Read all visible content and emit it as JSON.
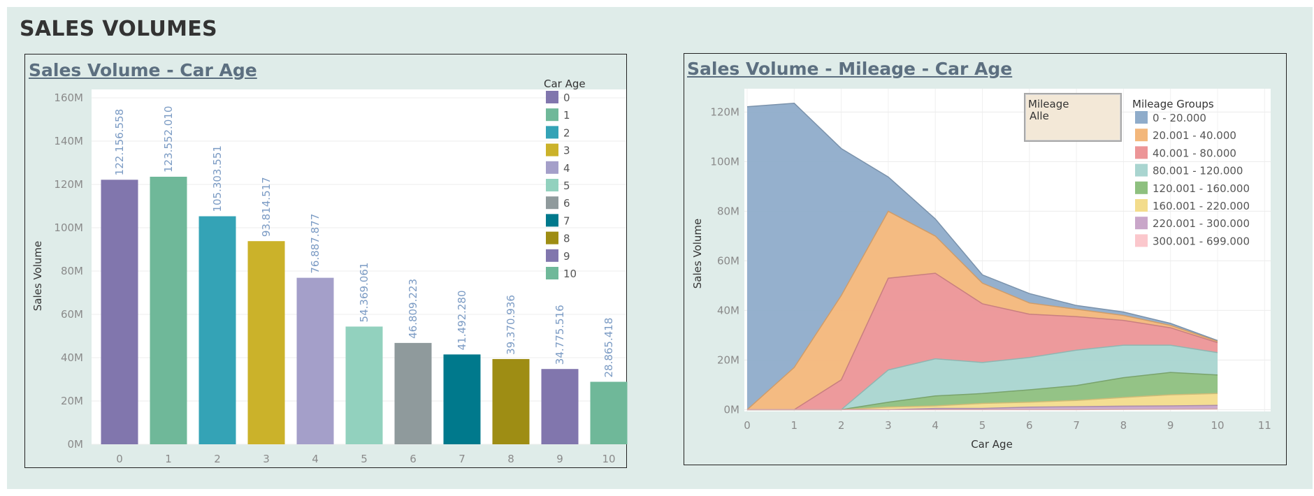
{
  "page": {
    "title": "SALES VOLUMES"
  },
  "filter": {
    "label": "Mileage",
    "value": "Alle"
  },
  "colors": {
    "panel_bg": "#dfece9",
    "plot_bg": "#ffffff",
    "title_color": "#5c6f80",
    "data_label_color": "#7b9bc4"
  },
  "chart_data": [
    {
      "type": "bar",
      "title": "Sales Volume - Car Age",
      "xlabel": "",
      "ylabel": "Sales Volume",
      "ylim": [
        0,
        160000000
      ],
      "yticks": [
        0,
        20000000,
        40000000,
        60000000,
        80000000,
        100000000,
        120000000,
        140000000,
        160000000
      ],
      "ytick_labels": [
        "0M",
        "20M",
        "40M",
        "60M",
        "80M",
        "100M",
        "120M",
        "140M",
        "160M"
      ],
      "categories": [
        "0",
        "1",
        "2",
        "3",
        "4",
        "5",
        "6",
        "7",
        "8",
        "9",
        "10"
      ],
      "values": [
        122156558,
        123552010,
        105303551,
        93814517,
        76887877,
        54369061,
        46809223,
        41492280,
        39370936,
        34775516,
        28865418
      ],
      "data_labels": [
        "122.156.558",
        "123.552.010",
        "105.303.551",
        "93.814.517",
        "76.887.877",
        "54.369.061",
        "46.809.223",
        "41.492.280",
        "39.370.936",
        "34.775.516",
        "28.865.418"
      ],
      "colors": [
        "#8176ad",
        "#6fb899",
        "#34a3b6",
        "#cbb22a",
        "#a49fc9",
        "#92d1be",
        "#8f9a9c",
        "#00798c",
        "#9e8d14",
        "#8176ad",
        "#6fb899"
      ],
      "legend": {
        "title": "Car Age",
        "position": "top-right",
        "items": [
          "0",
          "1",
          "2",
          "3",
          "4",
          "5",
          "6",
          "7",
          "8",
          "9",
          "10"
        ]
      },
      "grid": true
    },
    {
      "type": "area",
      "stacked": true,
      "title": "Sales Volume - Mileage - Car Age",
      "xlabel": "Car Age",
      "ylabel": "Sales Volume",
      "xlim": [
        0,
        11
      ],
      "ylim": [
        -3000000,
        128000000
      ],
      "x": [
        0,
        1,
        2,
        3,
        4,
        5,
        6,
        7,
        8,
        9,
        10
      ],
      "xticks": [
        "0",
        "1",
        "2",
        "3",
        "4",
        "5",
        "6",
        "7",
        "8",
        "9",
        "10",
        "11"
      ],
      "yticks": [
        0,
        20000000,
        40000000,
        60000000,
        80000000,
        100000000,
        120000000
      ],
      "ytick_labels": [
        "0M",
        "20M",
        "40M",
        "60M",
        "80M",
        "100M",
        "120M"
      ],
      "series": [
        {
          "name": "300.001 - 699.000",
          "color": "#fbc7cc",
          "values": [
            0,
            0,
            0,
            0,
            0,
            0,
            0,
            0,
            100000,
            200000,
            300000
          ]
        },
        {
          "name": "220.001 - 300.000",
          "color": "#c9a6c9",
          "values": [
            0,
            0,
            0,
            0,
            500000,
            500000,
            1000000,
            1200000,
            1300000,
            1300000,
            1400000
          ]
        },
        {
          "name": "160.001 - 220.000",
          "color": "#f3dc8c",
          "values": [
            0,
            0,
            0,
            1000000,
            1000000,
            2000000,
            2000000,
            2500000,
            3500000,
            4500000,
            4800000
          ]
        },
        {
          "name": "120.001 - 160.000",
          "color": "#8ec07f",
          "values": [
            0,
            0,
            0,
            2000000,
            4000000,
            4000000,
            5000000,
            6000000,
            8000000,
            9000000,
            7500000
          ]
        },
        {
          "name": "80.001 - 120.000",
          "color": "#a9d5d0",
          "values": [
            0,
            0,
            0,
            13000000,
            15000000,
            12500000,
            13000000,
            14300000,
            13100000,
            11000000,
            9000000
          ]
        },
        {
          "name": "40.001 - 80.000",
          "color": "#ec9597",
          "values": [
            0,
            0,
            12000000,
            37000000,
            34500000,
            23700000,
            17500000,
            13500000,
            10000000,
            7000000,
            4000000
          ]
        },
        {
          "name": "20.001 - 40.000",
          "color": "#f3b77b",
          "values": [
            0,
            17000000,
            34000000,
            27000000,
            15000000,
            8300000,
            4500000,
            3000000,
            2000000,
            1000000,
            500000
          ]
        },
        {
          "name": "0 - 20.000",
          "color": "#8facca",
          "values": [
            122156558,
            106552010,
            59303551,
            13814517,
            6887877,
            3369061,
            3809223,
            1492280,
            1370936,
            775516,
            365418
          ]
        }
      ],
      "legend": {
        "title": "Mileage Groups",
        "position": "top-right",
        "items": [
          "0 - 20.000",
          "20.001 - 40.000",
          "40.001 - 80.000",
          "80.001 - 120.000",
          "120.001 - 160.000",
          "160.001 - 220.000",
          "220.001 - 300.000",
          "300.001 - 699.000"
        ]
      },
      "grid": true
    }
  ]
}
